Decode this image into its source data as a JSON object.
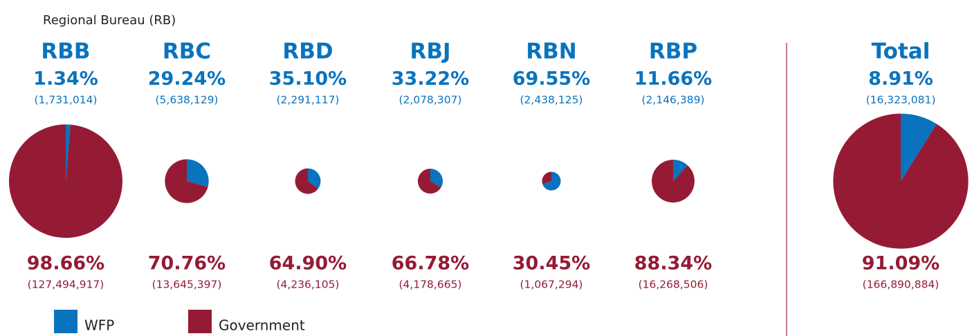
{
  "header": "Regional Bureau (RB)",
  "legend": {
    "categories": [
      "WFP",
      "Government"
    ],
    "colors": [
      "#0a73be",
      "#951b35"
    ]
  },
  "chart_data": [
    {
      "type": "pie",
      "title": "RBB",
      "values": [
        1.34,
        98.66
      ],
      "value_labels": [
        "1.34%",
        "98.66%"
      ],
      "counts": [
        1731014,
        127494917
      ],
      "count_labels": [
        "(1,731,014)",
        "(127,494,917)"
      ]
    },
    {
      "type": "pie",
      "title": "RBC",
      "values": [
        29.24,
        70.76
      ],
      "value_labels": [
        "29.24%",
        "70.76%"
      ],
      "counts": [
        5638129,
        13645397
      ],
      "count_labels": [
        "(5,638,129)",
        "(13,645,397)"
      ]
    },
    {
      "type": "pie",
      "title": "RBD",
      "values": [
        35.1,
        64.9
      ],
      "value_labels": [
        "35.10%",
        "64.90%"
      ],
      "counts": [
        2291117,
        4236105
      ],
      "count_labels": [
        "(2,291,117)",
        "(4,236,105)"
      ]
    },
    {
      "type": "pie",
      "title": "RBJ",
      "values": [
        33.22,
        66.78
      ],
      "value_labels": [
        "33.22%",
        "66.78%"
      ],
      "counts": [
        2078307,
        4178665
      ],
      "count_labels": [
        "(2,078,307)",
        "(4,178,665)"
      ]
    },
    {
      "type": "pie",
      "title": "RBN",
      "values": [
        69.55,
        30.45
      ],
      "value_labels": [
        "69.55%",
        "30.45%"
      ],
      "counts": [
        2438125,
        1067294
      ],
      "count_labels": [
        "(2,438,125)",
        "(1,067,294)"
      ]
    },
    {
      "type": "pie",
      "title": "RBP",
      "values": [
        11.66,
        88.34
      ],
      "value_labels": [
        "11.66%",
        "88.34%"
      ],
      "counts": [
        2146389,
        16268506
      ],
      "count_labels": [
        "(2,146,389)",
        "(16,268,506)"
      ]
    },
    {
      "type": "pie",
      "title": "Total",
      "values": [
        8.91,
        91.09
      ],
      "value_labels": [
        "8.91%",
        "91.09%"
      ],
      "counts": [
        16323081,
        166890884
      ],
      "count_labels": [
        "(16,323,081)",
        "(166,890,884)"
      ]
    }
  ]
}
